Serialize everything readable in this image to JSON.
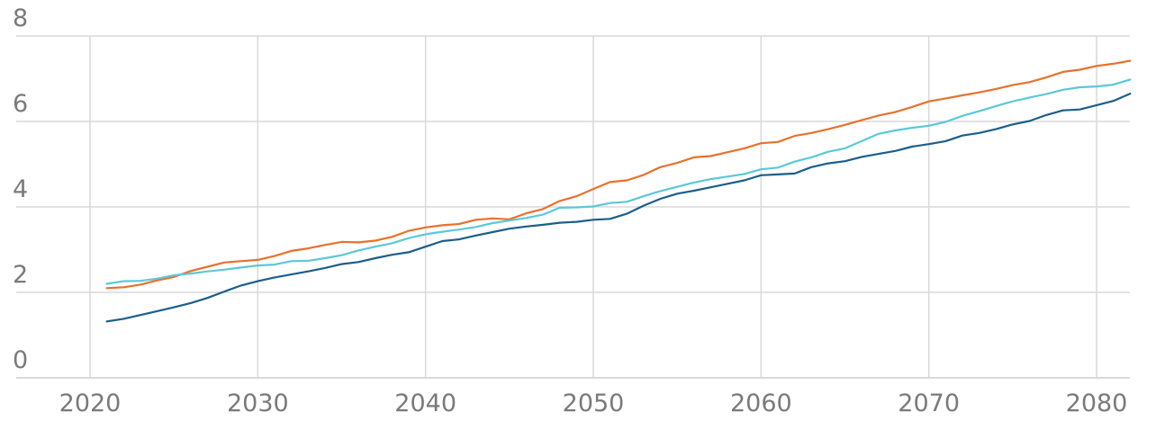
{
  "chart_data": {
    "type": "line",
    "title": "",
    "xlabel": "",
    "ylabel": "",
    "xlim": [
      2016,
      2082
    ],
    "ylim": [
      0,
      8
    ],
    "x_ticks": [
      "2020",
      "2030",
      "2040",
      "2050",
      "2060",
      "2070",
      "2080"
    ],
    "y_ticks": [
      "0",
      "2",
      "4",
      "6",
      "8"
    ],
    "grid": true,
    "legend": "none",
    "x": [
      2021,
      2022,
      2023,
      2024,
      2025,
      2026,
      2027,
      2028,
      2029,
      2030,
      2031,
      2032,
      2033,
      2034,
      2035,
      2036,
      2037,
      2038,
      2039,
      2040,
      2041,
      2042,
      2043,
      2044,
      2045,
      2046,
      2047,
      2048,
      2049,
      2050,
      2051,
      2052,
      2053,
      2054,
      2055,
      2056,
      2057,
      2058,
      2059,
      2060,
      2061,
      2062,
      2063,
      2064,
      2065,
      2066,
      2067,
      2068,
      2069,
      2070,
      2071,
      2072,
      2073,
      2074,
      2075,
      2076,
      2077,
      2078,
      2079,
      2080,
      2081,
      2082
    ],
    "series": [
      {
        "color": "#e8712b",
        "values": [
          2.1,
          2.12,
          2.18,
          2.28,
          2.36,
          2.5,
          2.6,
          2.7,
          2.73,
          2.76,
          2.85,
          2.97,
          3.03,
          3.11,
          3.18,
          3.17,
          3.21,
          3.3,
          3.44,
          3.52,
          3.57,
          3.6,
          3.7,
          3.73,
          3.71,
          3.85,
          3.95,
          4.14,
          4.25,
          4.42,
          4.58,
          4.62,
          4.75,
          4.93,
          5.03,
          5.16,
          5.19,
          5.28,
          5.37,
          5.49,
          5.52,
          5.66,
          5.73,
          5.82,
          5.92,
          6.03,
          6.14,
          6.22,
          6.34,
          6.47,
          6.54,
          6.61,
          6.68,
          6.76,
          6.85,
          6.92,
          7.03,
          7.16,
          7.21,
          7.3,
          7.35,
          7.42
        ]
      },
      {
        "color": "#5bc8d9",
        "values": [
          2.2,
          2.26,
          2.27,
          2.32,
          2.4,
          2.44,
          2.49,
          2.53,
          2.58,
          2.63,
          2.65,
          2.73,
          2.74,
          2.8,
          2.87,
          2.98,
          3.07,
          3.15,
          3.27,
          3.36,
          3.42,
          3.47,
          3.53,
          3.62,
          3.68,
          3.74,
          3.82,
          3.98,
          3.99,
          4.01,
          4.09,
          4.12,
          4.25,
          4.37,
          4.47,
          4.57,
          4.65,
          4.71,
          4.77,
          4.88,
          4.92,
          5.06,
          5.16,
          5.29,
          5.37,
          5.54,
          5.71,
          5.79,
          5.85,
          5.9,
          5.99,
          6.13,
          6.24,
          6.36,
          6.47,
          6.56,
          6.64,
          6.74,
          6.8,
          6.82,
          6.86,
          6.98
        ]
      },
      {
        "color": "#1b5e8a",
        "values": [
          1.32,
          1.38,
          1.47,
          1.56,
          1.65,
          1.75,
          1.87,
          2.02,
          2.16,
          2.26,
          2.35,
          2.42,
          2.49,
          2.57,
          2.66,
          2.71,
          2.8,
          2.88,
          2.94,
          3.07,
          3.2,
          3.24,
          3.33,
          3.41,
          3.49,
          3.54,
          3.58,
          3.63,
          3.65,
          3.7,
          3.72,
          3.84,
          4.03,
          4.19,
          4.31,
          4.38,
          4.46,
          4.54,
          4.62,
          4.74,
          4.76,
          4.78,
          4.93,
          5.02,
          5.07,
          5.17,
          5.24,
          5.31,
          5.41,
          5.47,
          5.54,
          5.67,
          5.73,
          5.82,
          5.93,
          6.01,
          6.15,
          6.26,
          6.28,
          6.38,
          6.48,
          6.65
        ]
      }
    ]
  }
}
